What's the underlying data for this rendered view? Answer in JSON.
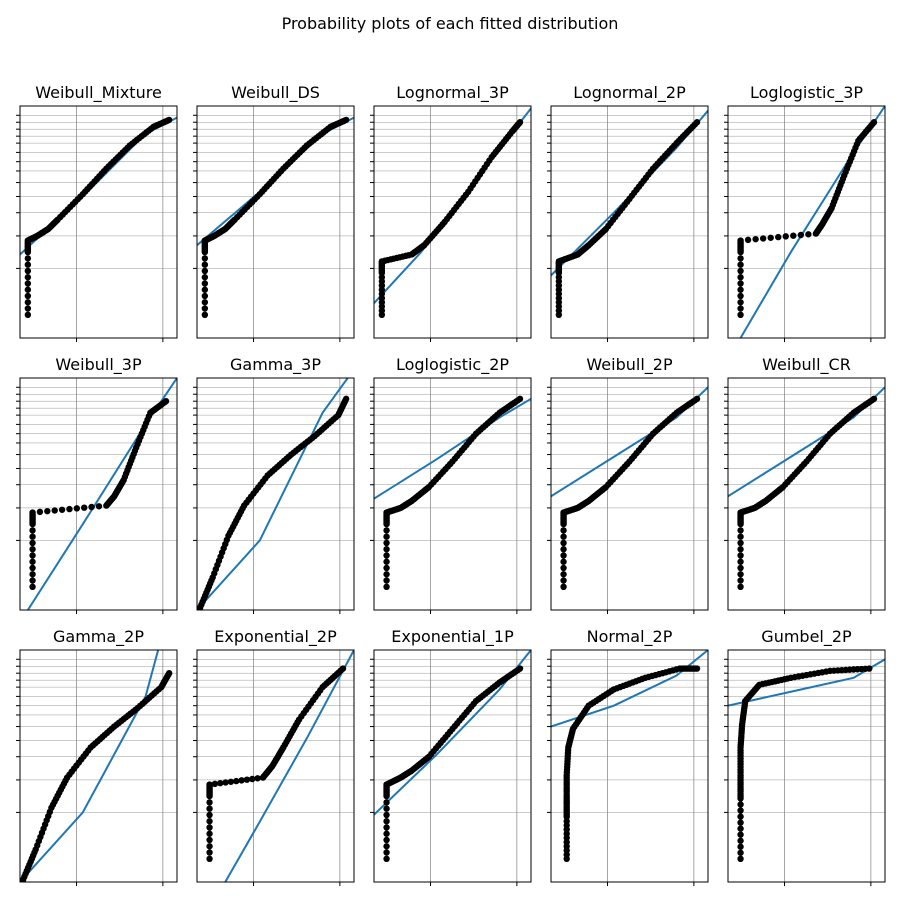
{
  "figure_title": "Probability plots of each fitted distribution",
  "colors": {
    "fit_line": "#1f77b4",
    "points": "#000000",
    "grid": "#808080",
    "frame": "#000000"
  },
  "chart_data": [
    {
      "type": "scatter",
      "title": "Weibull_Mixture",
      "grid": true,
      "points": [
        [
          0.05,
          0.1
        ],
        [
          0.05,
          0.37
        ],
        [
          0.05,
          0.42
        ],
        [
          0.11,
          0.44
        ],
        [
          0.18,
          0.47
        ],
        [
          0.24,
          0.51
        ],
        [
          0.4,
          0.62
        ],
        [
          0.55,
          0.73
        ],
        [
          0.7,
          0.83
        ],
        [
          0.85,
          0.91
        ],
        [
          0.95,
          0.94
        ]
      ],
      "fit": [
        [
          0,
          0.36
        ],
        [
          0.4,
          0.61
        ],
        [
          0.8,
          0.88
        ],
        [
          1,
          0.95
        ]
      ]
    },
    {
      "type": "scatter",
      "title": "Weibull_DS",
      "grid": true,
      "points": [
        [
          0.05,
          0.1
        ],
        [
          0.05,
          0.37
        ],
        [
          0.05,
          0.42
        ],
        [
          0.11,
          0.44
        ],
        [
          0.18,
          0.47
        ],
        [
          0.24,
          0.51
        ],
        [
          0.4,
          0.62
        ],
        [
          0.55,
          0.73
        ],
        [
          0.7,
          0.83
        ],
        [
          0.85,
          0.91
        ],
        [
          0.95,
          0.94
        ]
      ],
      "fit": [
        [
          0,
          0.4
        ],
        [
          0.4,
          0.63
        ],
        [
          0.8,
          0.88
        ],
        [
          1,
          0.95
        ]
      ]
    },
    {
      "type": "scatter",
      "title": "Lognormal_3P",
      "grid": true,
      "points": [
        [
          0.05,
          0.1
        ],
        [
          0.05,
          0.28
        ],
        [
          0.05,
          0.33
        ],
        [
          0.24,
          0.36
        ],
        [
          0.32,
          0.4
        ],
        [
          0.45,
          0.5
        ],
        [
          0.6,
          0.63
        ],
        [
          0.75,
          0.78
        ],
        [
          0.88,
          0.89
        ],
        [
          0.93,
          0.93
        ]
      ],
      "fit": [
        [
          0,
          0.15
        ],
        [
          0.3,
          0.37
        ],
        [
          0.6,
          0.64
        ],
        [
          1,
          0.99
        ]
      ],
      "fit_light_until": 0.18
    },
    {
      "type": "scatter",
      "title": "Lognormal_2P",
      "grid": true,
      "points": [
        [
          0.05,
          0.1
        ],
        [
          0.05,
          0.28
        ],
        [
          0.05,
          0.33
        ],
        [
          0.17,
          0.36
        ],
        [
          0.24,
          0.4
        ],
        [
          0.35,
          0.47
        ],
        [
          0.5,
          0.6
        ],
        [
          0.65,
          0.73
        ],
        [
          0.8,
          0.84
        ],
        [
          0.93,
          0.93
        ]
      ],
      "fit": [
        [
          0,
          0.27
        ],
        [
          0.4,
          0.54
        ],
        [
          0.8,
          0.82
        ],
        [
          1,
          0.98
        ]
      ]
    },
    {
      "type": "scatter",
      "title": "Loglogistic_3P",
      "grid": true,
      "points": [
        [
          0.08,
          0.1
        ],
        [
          0.08,
          0.37
        ],
        [
          0.08,
          0.42
        ],
        [
          0.56,
          0.45
        ],
        [
          0.6,
          0.49
        ],
        [
          0.66,
          0.56
        ],
        [
          0.74,
          0.7
        ],
        [
          0.83,
          0.85
        ],
        [
          0.93,
          0.93
        ]
      ],
      "fit": [
        [
          0.08,
          0
        ],
        [
          0.4,
          0.37
        ],
        [
          0.8,
          0.8
        ],
        [
          1,
          1
        ]
      ],
      "fit_light_until": 0.25
    },
    {
      "type": "scatter",
      "title": "Weibull_3P",
      "grid": true,
      "points": [
        [
          0.08,
          0.1
        ],
        [
          0.08,
          0.37
        ],
        [
          0.08,
          0.42
        ],
        [
          0.55,
          0.45
        ],
        [
          0.6,
          0.49
        ],
        [
          0.66,
          0.56
        ],
        [
          0.74,
          0.7
        ],
        [
          0.83,
          0.85
        ],
        [
          0.93,
          0.9
        ]
      ],
      "fit": [
        [
          0.05,
          0
        ],
        [
          0.4,
          0.37
        ],
        [
          0.8,
          0.8
        ],
        [
          1,
          1
        ]
      ],
      "fit_light_until": 0.25
    },
    {
      "type": "scatter",
      "title": "Gamma_3P",
      "grid": true,
      "points": [
        [
          0.02,
          0.01
        ],
        [
          0.1,
          0.14
        ],
        [
          0.2,
          0.32
        ],
        [
          0.3,
          0.45
        ],
        [
          0.45,
          0.58
        ],
        [
          0.6,
          0.67
        ],
        [
          0.75,
          0.75
        ],
        [
          0.9,
          0.84
        ],
        [
          0.95,
          0.91
        ]
      ],
      "fit": [
        [
          0,
          0
        ],
        [
          0.4,
          0.3
        ],
        [
          0.8,
          0.85
        ],
        [
          0.96,
          1
        ]
      ],
      "fit_light_from": 0.5
    },
    {
      "type": "scatter",
      "title": "Loglogistic_2P",
      "grid": true,
      "points": [
        [
          0.08,
          0.1
        ],
        [
          0.08,
          0.37
        ],
        [
          0.08,
          0.42
        ],
        [
          0.17,
          0.44
        ],
        [
          0.24,
          0.47
        ],
        [
          0.35,
          0.53
        ],
        [
          0.5,
          0.64
        ],
        [
          0.65,
          0.76
        ],
        [
          0.8,
          0.85
        ],
        [
          0.93,
          0.91
        ]
      ],
      "fit": [
        [
          0,
          0.48
        ],
        [
          0.4,
          0.65
        ],
        [
          0.8,
          0.83
        ],
        [
          1,
          0.91
        ]
      ]
    },
    {
      "type": "scatter",
      "title": "Weibull_2P",
      "grid": true,
      "points": [
        [
          0.08,
          0.1
        ],
        [
          0.08,
          0.37
        ],
        [
          0.08,
          0.42
        ],
        [
          0.17,
          0.44
        ],
        [
          0.24,
          0.47
        ],
        [
          0.35,
          0.53
        ],
        [
          0.5,
          0.64
        ],
        [
          0.65,
          0.76
        ],
        [
          0.8,
          0.85
        ],
        [
          0.93,
          0.91
        ]
      ],
      "fit": [
        [
          0,
          0.49
        ],
        [
          0.4,
          0.66
        ],
        [
          0.8,
          0.83
        ],
        [
          1,
          0.96
        ]
      ]
    },
    {
      "type": "scatter",
      "title": "Weibull_CR",
      "grid": true,
      "points": [
        [
          0.08,
          0.1
        ],
        [
          0.08,
          0.37
        ],
        [
          0.08,
          0.42
        ],
        [
          0.17,
          0.44
        ],
        [
          0.24,
          0.47
        ],
        [
          0.35,
          0.53
        ],
        [
          0.5,
          0.64
        ],
        [
          0.65,
          0.76
        ],
        [
          0.8,
          0.85
        ],
        [
          0.93,
          0.91
        ]
      ],
      "fit": [
        [
          0,
          0.49
        ],
        [
          0.4,
          0.66
        ],
        [
          0.8,
          0.83
        ],
        [
          1,
          0.96
        ]
      ]
    },
    {
      "type": "scatter",
      "title": "Gamma_2P",
      "grid": true,
      "points": [
        [
          0.02,
          0.01
        ],
        [
          0.1,
          0.14
        ],
        [
          0.2,
          0.32
        ],
        [
          0.3,
          0.45
        ],
        [
          0.45,
          0.58
        ],
        [
          0.6,
          0.67
        ],
        [
          0.75,
          0.75
        ],
        [
          0.9,
          0.84
        ],
        [
          0.95,
          0.9
        ]
      ],
      "fit": [
        [
          0,
          0
        ],
        [
          0.4,
          0.3
        ],
        [
          0.8,
          0.8
        ],
        [
          0.88,
          1
        ]
      ],
      "fit_light_from": 0.6
    },
    {
      "type": "scatter",
      "title": "Exponential_2P",
      "grid": true,
      "points": [
        [
          0.08,
          0.1
        ],
        [
          0.08,
          0.37
        ],
        [
          0.08,
          0.42
        ],
        [
          0.42,
          0.45
        ],
        [
          0.48,
          0.5
        ],
        [
          0.55,
          0.58
        ],
        [
          0.65,
          0.7
        ],
        [
          0.8,
          0.84
        ],
        [
          0.93,
          0.92
        ]
      ],
      "fit": [
        [
          0.18,
          0
        ],
        [
          0.4,
          0.26
        ],
        [
          0.7,
          0.62
        ],
        [
          1,
          1
        ]
      ],
      "fit_light_until": 0.35
    },
    {
      "type": "scatter",
      "title": "Exponential_1P",
      "grid": true,
      "points": [
        [
          0.08,
          0.1
        ],
        [
          0.08,
          0.37
        ],
        [
          0.08,
          0.42
        ],
        [
          0.17,
          0.45
        ],
        [
          0.24,
          0.48
        ],
        [
          0.35,
          0.54
        ],
        [
          0.5,
          0.66
        ],
        [
          0.65,
          0.78
        ],
        [
          0.8,
          0.86
        ],
        [
          0.93,
          0.92
        ]
      ],
      "fit": [
        [
          0,
          0.29
        ],
        [
          0.4,
          0.55
        ],
        [
          0.8,
          0.83
        ],
        [
          1,
          1
        ]
      ]
    },
    {
      "type": "scatter",
      "title": "Normal_2P",
      "grid": true,
      "points": [
        [
          0.1,
          0.1
        ],
        [
          0.1,
          0.28
        ],
        [
          0.1,
          0.36
        ],
        [
          0.1,
          0.46
        ],
        [
          0.11,
          0.58
        ],
        [
          0.14,
          0.66
        ],
        [
          0.24,
          0.76
        ],
        [
          0.4,
          0.83
        ],
        [
          0.6,
          0.88
        ],
        [
          0.82,
          0.92
        ],
        [
          0.93,
          0.92
        ]
      ],
      "fit": [
        [
          0,
          0.67
        ],
        [
          0.4,
          0.76
        ],
        [
          0.8,
          0.89
        ],
        [
          1,
          1
        ]
      ]
    },
    {
      "type": "scatter",
      "title": "Gumbel_2P",
      "grid": true,
      "points": [
        [
          0.08,
          0.1
        ],
        [
          0.08,
          0.36
        ],
        [
          0.08,
          0.46
        ],
        [
          0.08,
          0.58
        ],
        [
          0.09,
          0.68
        ],
        [
          0.11,
          0.78
        ],
        [
          0.2,
          0.85
        ],
        [
          0.4,
          0.88
        ],
        [
          0.65,
          0.91
        ],
        [
          0.9,
          0.92
        ]
      ],
      "fit": [
        [
          0,
          0.76
        ],
        [
          0.4,
          0.82
        ],
        [
          0.8,
          0.88
        ],
        [
          1,
          0.96
        ]
      ]
    }
  ]
}
